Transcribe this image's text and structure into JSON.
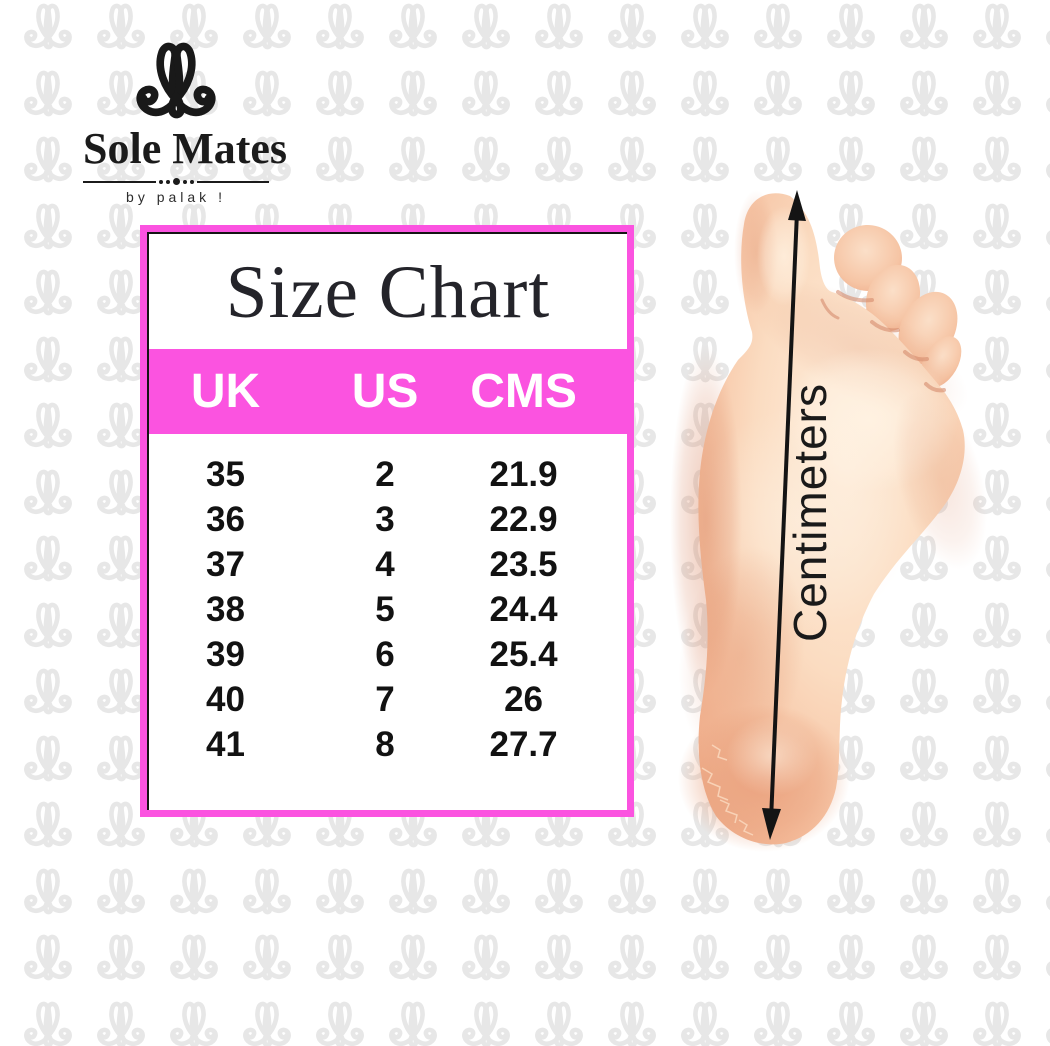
{
  "brand": {
    "name": "Sole Mates",
    "tagline": "by palak !",
    "monogram_icon": "monogram-flourish"
  },
  "size_chart": {
    "title": "Size Chart",
    "columns": [
      "UK",
      "US",
      "CMS"
    ],
    "rows": [
      [
        "35",
        "2",
        "21.9"
      ],
      [
        "36",
        "3",
        "22.9"
      ],
      [
        "37",
        "4",
        "23.5"
      ],
      [
        "38",
        "5",
        "24.4"
      ],
      [
        "39",
        "6",
        "25.4"
      ],
      [
        "40",
        "7",
        "26"
      ],
      [
        "41",
        "8",
        "27.7"
      ]
    ]
  },
  "foot_diagram": {
    "measure_label": "Centimeters",
    "arrow_icon": "double-headed-arrow"
  },
  "colors": {
    "accent_pink": "#fb53e0",
    "text_dark": "#1a1a1a",
    "pattern_gray": "#e7e7e7",
    "skin_light": "#feeedd",
    "skin_dark": "#e79d7c"
  },
  "chart_data": {
    "type": "table",
    "title": "Size Chart",
    "columns": [
      "UK",
      "US",
      "CMS"
    ],
    "rows": [
      [
        35,
        2,
        21.9
      ],
      [
        36,
        3,
        22.9
      ],
      [
        37,
        4,
        23.5
      ],
      [
        38,
        5,
        24.4
      ],
      [
        39,
        6,
        25.4
      ],
      [
        40,
        7,
        26
      ],
      [
        41,
        8,
        27.7
      ]
    ],
    "annotation": "Centimeters"
  }
}
